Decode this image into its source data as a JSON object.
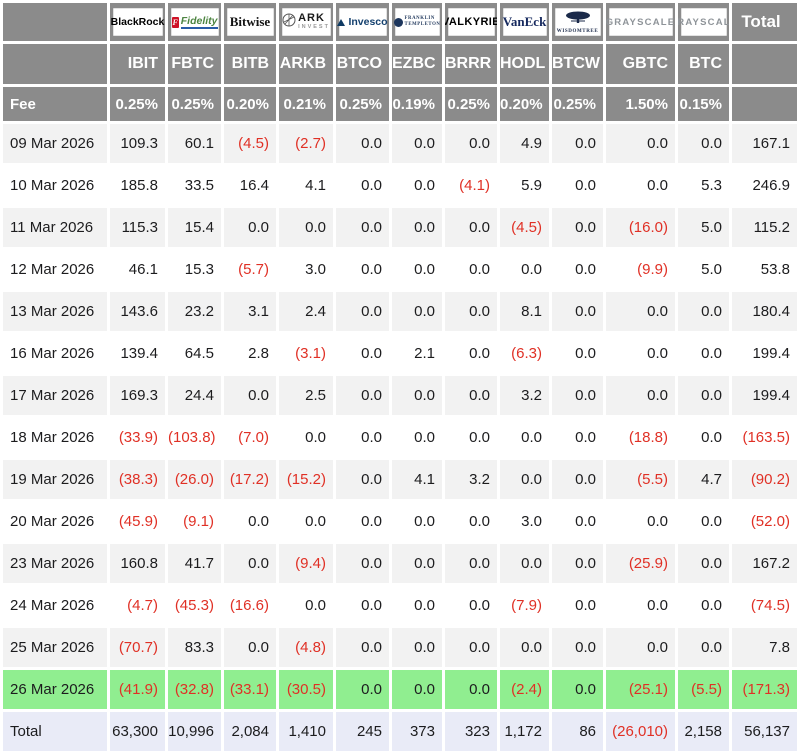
{
  "colors": {
    "header_gray": "#8b8b8b",
    "row_alt": "#f2f2f2",
    "highlight_green": "#90ee90",
    "total_bg": "#e9ebf7",
    "negative_red": "#e03025"
  },
  "chart_data": {
    "type": "table",
    "fee_label": "Fee",
    "total_label": "Total",
    "total_row_label": "Total",
    "providers": [
      {
        "name": "BlackRock",
        "ticker": "IBIT",
        "fee": "0.25%",
        "logo_lines": [
          "BlackRock"
        ]
      },
      {
        "name": "Fidelity",
        "ticker": "FBTC",
        "fee": "0.25%",
        "logo_lines": [
          "F",
          "Fidelity"
        ]
      },
      {
        "name": "Bitwise",
        "ticker": "BITB",
        "fee": "0.20%",
        "logo_lines": [
          "Bitwise"
        ]
      },
      {
        "name": "ARK Invest",
        "ticker": "ARKB",
        "fee": "0.21%",
        "logo_lines": [
          "ARK",
          "INVEST"
        ]
      },
      {
        "name": "Invesco",
        "ticker": "BTCO",
        "fee": "0.25%",
        "logo_lines": [
          "Invesco"
        ]
      },
      {
        "name": "Franklin Templeton",
        "ticker": "EZBC",
        "fee": "0.19%",
        "logo_lines": [
          "FRANKLIN",
          "TEMPLETON"
        ]
      },
      {
        "name": "Valkyrie",
        "ticker": "BRRR",
        "fee": "0.25%",
        "logo_lines": [
          "VALKYRIE"
        ]
      },
      {
        "name": "VanEck",
        "ticker": "HODL",
        "fee": "0.20%",
        "logo_lines": [
          "VanEck"
        ]
      },
      {
        "name": "WisdomTree",
        "ticker": "BTCW",
        "fee": "0.25%",
        "logo_lines": [
          "WISDOMTREE"
        ]
      },
      {
        "name": "Grayscale",
        "ticker": "GBTC",
        "fee": "1.50%",
        "logo_lines": [
          "GRAYSCALE"
        ]
      },
      {
        "name": "Grayscale",
        "ticker": "BTC",
        "fee": "0.15%",
        "logo_lines": [
          "GRAYSCALE"
        ]
      }
    ],
    "rows": [
      {
        "label": "09 Mar 2026",
        "values": [
          "109.3",
          "60.1",
          "(4.5)",
          "(2.7)",
          "0.0",
          "0.0",
          "0.0",
          "4.9",
          "0.0",
          "0.0",
          "0.0"
        ],
        "total": "167.1"
      },
      {
        "label": "10 Mar 2026",
        "values": [
          "185.8",
          "33.5",
          "16.4",
          "4.1",
          "0.0",
          "0.0",
          "(4.1)",
          "5.9",
          "0.0",
          "0.0",
          "5.3"
        ],
        "total": "246.9"
      },
      {
        "label": "11 Mar 2026",
        "values": [
          "115.3",
          "15.4",
          "0.0",
          "0.0",
          "0.0",
          "0.0",
          "0.0",
          "(4.5)",
          "0.0",
          "(16.0)",
          "5.0"
        ],
        "total": "115.2"
      },
      {
        "label": "12 Mar 2026",
        "values": [
          "46.1",
          "15.3",
          "(5.7)",
          "3.0",
          "0.0",
          "0.0",
          "0.0",
          "0.0",
          "0.0",
          "(9.9)",
          "5.0"
        ],
        "total": "53.8"
      },
      {
        "label": "13 Mar 2026",
        "values": [
          "143.6",
          "23.2",
          "3.1",
          "2.4",
          "0.0",
          "0.0",
          "0.0",
          "8.1",
          "0.0",
          "0.0",
          "0.0"
        ],
        "total": "180.4"
      },
      {
        "label": "16 Mar 2026",
        "values": [
          "139.4",
          "64.5",
          "2.8",
          "(3.1)",
          "0.0",
          "2.1",
          "0.0",
          "(6.3)",
          "0.0",
          "0.0",
          "0.0"
        ],
        "total": "199.4"
      },
      {
        "label": "17 Mar 2026",
        "values": [
          "169.3",
          "24.4",
          "0.0",
          "2.5",
          "0.0",
          "0.0",
          "0.0",
          "3.2",
          "0.0",
          "0.0",
          "0.0"
        ],
        "total": "199.4"
      },
      {
        "label": "18 Mar 2026",
        "values": [
          "(33.9)",
          "(103.8)",
          "(7.0)",
          "0.0",
          "0.0",
          "0.0",
          "0.0",
          "0.0",
          "0.0",
          "(18.8)",
          "0.0"
        ],
        "total": "(163.5)"
      },
      {
        "label": "19 Mar 2026",
        "values": [
          "(38.3)",
          "(26.0)",
          "(17.2)",
          "(15.2)",
          "0.0",
          "4.1",
          "3.2",
          "0.0",
          "0.0",
          "(5.5)",
          "4.7"
        ],
        "total": "(90.2)"
      },
      {
        "label": "20 Mar 2026",
        "values": [
          "(45.9)",
          "(9.1)",
          "0.0",
          "0.0",
          "0.0",
          "0.0",
          "0.0",
          "3.0",
          "0.0",
          "0.0",
          "0.0"
        ],
        "total": "(52.0)"
      },
      {
        "label": "23 Mar 2026",
        "values": [
          "160.8",
          "41.7",
          "0.0",
          "(9.4)",
          "0.0",
          "0.0",
          "0.0",
          "0.0",
          "0.0",
          "(25.9)",
          "0.0"
        ],
        "total": "167.2"
      },
      {
        "label": "24 Mar 2026",
        "values": [
          "(4.7)",
          "(45.3)",
          "(16.6)",
          "0.0",
          "0.0",
          "0.0",
          "0.0",
          "(7.9)",
          "0.0",
          "0.0",
          "0.0"
        ],
        "total": "(74.5)"
      },
      {
        "label": "25 Mar 2026",
        "values": [
          "(70.7)",
          "83.3",
          "0.0",
          "(4.8)",
          "0.0",
          "0.0",
          "0.0",
          "0.0",
          "0.0",
          "0.0",
          "0.0"
        ],
        "total": "7.8"
      },
      {
        "label": "26 Mar 2026",
        "kind": "highlight",
        "values": [
          "(41.9)",
          "(32.8)",
          "(33.1)",
          "(30.5)",
          "0.0",
          "0.0",
          "0.0",
          "(2.4)",
          "0.0",
          "(25.1)",
          "(5.5)"
        ],
        "total": "(171.3)"
      },
      {
        "label": "Total",
        "kind": "total",
        "values": [
          "63,300",
          "10,996",
          "2,084",
          "1,410",
          "245",
          "373",
          "323",
          "1,172",
          "86",
          "(26,010)",
          "2,158"
        ],
        "total": "56,137"
      }
    ]
  }
}
